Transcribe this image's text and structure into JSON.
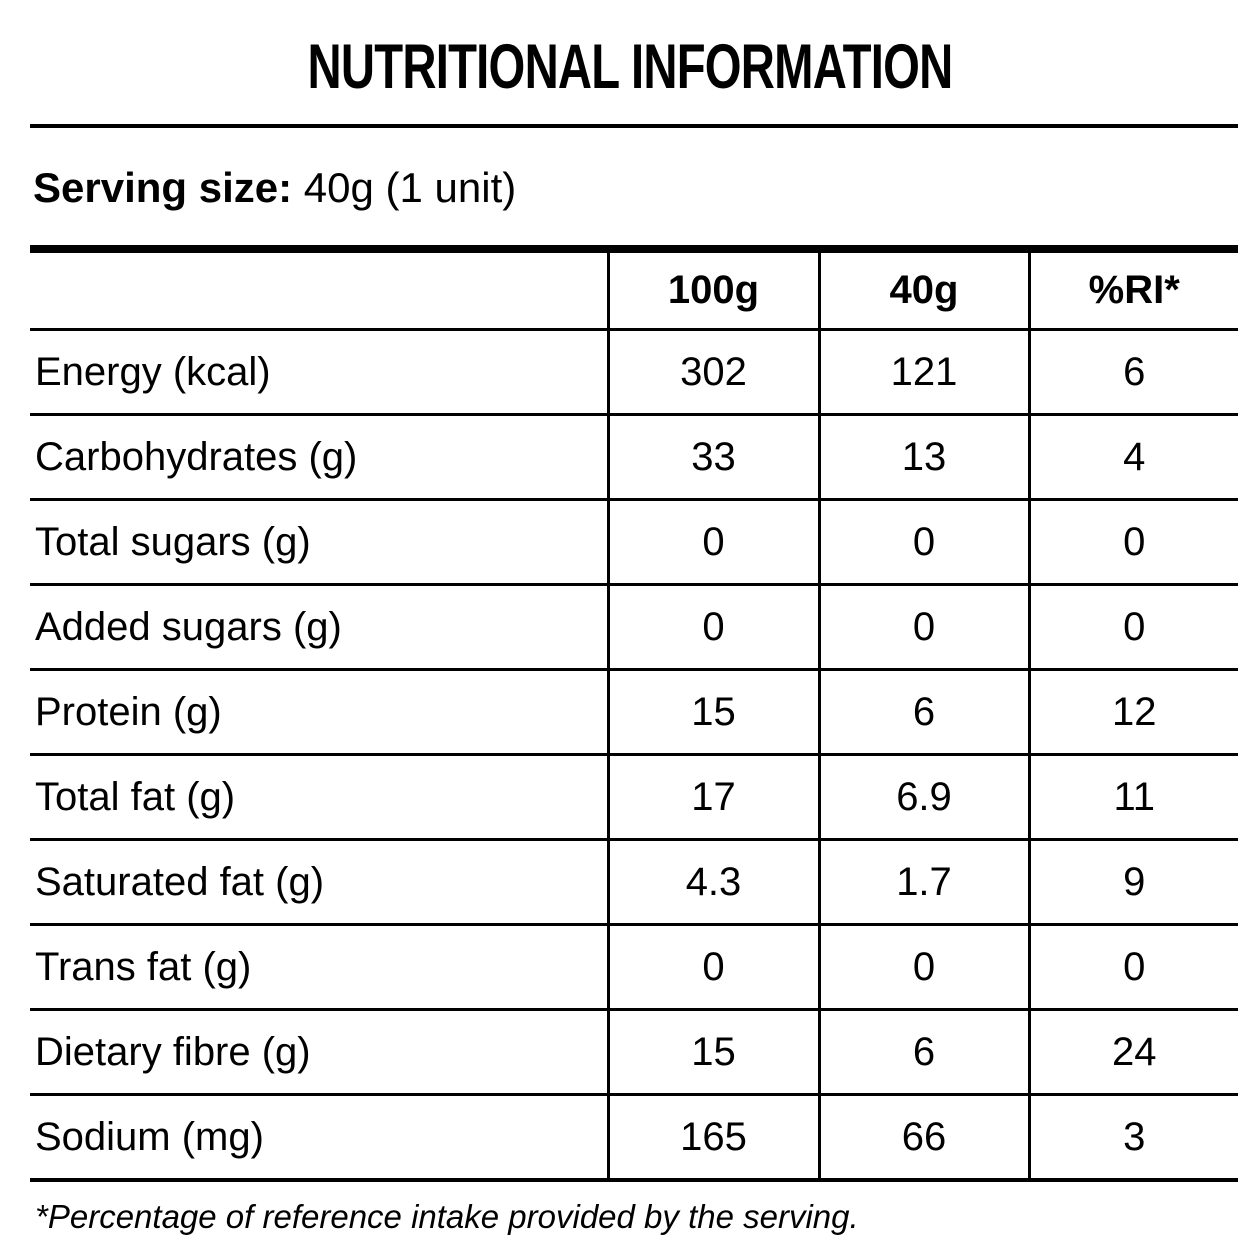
{
  "page": {
    "title": "NUTRITIONAL INFORMATION",
    "serving": {
      "label": "Serving size:",
      "value": "40g (1 unit)"
    },
    "footnote": "*Percentage of reference intake provided by the serving."
  },
  "table": {
    "columns": {
      "label": "",
      "per100g": "100g",
      "perServing": "40g",
      "ri": "%RI*"
    },
    "rows": [
      {
        "label": "Energy (kcal)",
        "per100g": "302",
        "perServing": "121",
        "ri": "6"
      },
      {
        "label": "Carbohydrates (g)",
        "per100g": "33",
        "perServing": "13",
        "ri": "4"
      },
      {
        "label": "Total sugars (g)",
        "per100g": "0",
        "perServing": "0",
        "ri": "0"
      },
      {
        "label": "Added sugars (g)",
        "per100g": "0",
        "perServing": "0",
        "ri": "0"
      },
      {
        "label": "Protein (g)",
        "per100g": "15",
        "perServing": "6",
        "ri": "12"
      },
      {
        "label": "Total fat (g)",
        "per100g": "17",
        "perServing": "6.9",
        "ri": "11"
      },
      {
        "label": "Saturated fat (g)",
        "per100g": "4.3",
        "perServing": "1.7",
        "ri": "9"
      },
      {
        "label": "Trans fat (g)",
        "per100g": "0",
        "perServing": "0",
        "ri": "0"
      },
      {
        "label": "Dietary fibre (g)",
        "per100g": "15",
        "perServing": "6",
        "ri": "24"
      },
      {
        "label": "Sodium (mg)",
        "per100g": "165",
        "perServing": "66",
        "ri": "3"
      }
    ]
  },
  "colors": {
    "text": "#000000",
    "background": "#ffffff",
    "line": "#000000"
  }
}
